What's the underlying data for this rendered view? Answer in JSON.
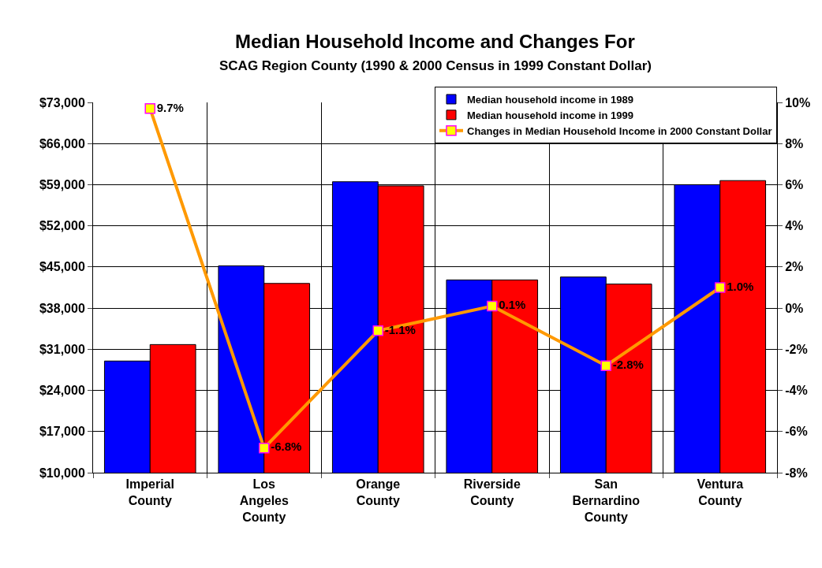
{
  "chart_data": {
    "type": "bar",
    "title": "Median Household Income and Changes For",
    "subtitle": "SCAG Region County (1990 & 2000 Census in 1999 Constant Dollar)",
    "categories": [
      "Imperial County",
      "Los Angeles County",
      "Orange County",
      "Riverside County",
      "San Bernardino County",
      "Ventura County"
    ],
    "series": [
      {
        "name": "Median household income in 1989",
        "color": "#0000ff",
        "values": [
          29000,
          45200,
          59500,
          42800,
          43300,
          59000
        ]
      },
      {
        "name": "Median household income in 1999",
        "color": "#ff0000",
        "values": [
          31800,
          42200,
          58800,
          42800,
          42100,
          59700
        ]
      },
      {
        "name": "Changes in Median Household Income in 2000 Constant Dollar",
        "type": "line",
        "axis": "y2",
        "color": "#ff9900",
        "marker": "square",
        "values": [
          9.7,
          -6.8,
          -1.1,
          0.1,
          -2.8,
          1.0
        ],
        "value_labels": [
          "9.7%",
          "-6.8%",
          "-1.1%",
          "0.1%",
          "-2.8%",
          "1.0%"
        ]
      }
    ],
    "ylim": [
      10000,
      73000
    ],
    "yticks": [
      {
        "value": 10000,
        "label": "$10,000"
      },
      {
        "value": 17000,
        "label": "$17,000"
      },
      {
        "value": 24000,
        "label": "$24,000"
      },
      {
        "value": 31000,
        "label": "$31,000"
      },
      {
        "value": 38000,
        "label": "$38,000"
      },
      {
        "value": 45000,
        "label": "$45,000"
      },
      {
        "value": 52000,
        "label": "$52,000"
      },
      {
        "value": 59000,
        "label": "$59,000"
      },
      {
        "value": 66000,
        "label": "$66,000"
      },
      {
        "value": 73000,
        "label": "$73,000"
      }
    ],
    "y2lim": [
      -8,
      10
    ],
    "y2ticks": [
      {
        "value": -8,
        "label": "-8%"
      },
      {
        "value": -6,
        "label": "-6%"
      },
      {
        "value": -4,
        "label": "-4%"
      },
      {
        "value": -2,
        "label": "-2%"
      },
      {
        "value": 0,
        "label": "0%"
      },
      {
        "value": 2,
        "label": "2%"
      },
      {
        "value": 4,
        "label": "4%"
      },
      {
        "value": 6,
        "label": "6%"
      },
      {
        "value": 8,
        "label": "8%"
      },
      {
        "value": 10,
        "label": "10%"
      }
    ],
    "grid": true,
    "legend": "top right"
  }
}
